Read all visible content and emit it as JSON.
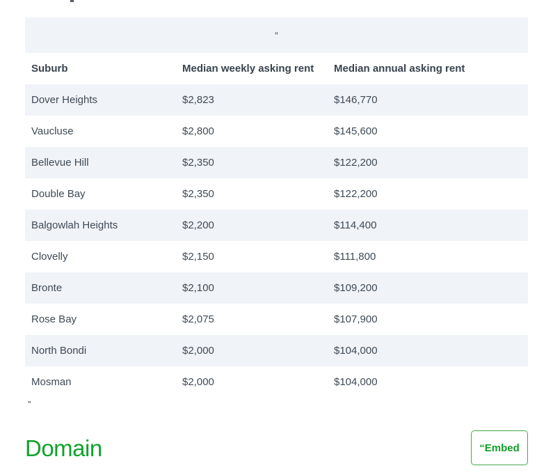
{
  "quote_block": {
    "opening_mark": "”"
  },
  "table": {
    "headers": [
      "Suburb",
      "Median weekly asking rent",
      "Median annual asking rent"
    ],
    "rows": [
      {
        "suburb": "Dover Heights",
        "weekly": "$2,823",
        "annual": "$146,770"
      },
      {
        "suburb": "Vaucluse",
        "weekly": "$2,800",
        "annual": "$145,600"
      },
      {
        "suburb": "Bellevue Hill",
        "weekly": "$2,350",
        "annual": "$122,200"
      },
      {
        "suburb": "Double Bay",
        "weekly": "$2,350",
        "annual": "$122,200"
      },
      {
        "suburb": "Balgowlah Heights",
        "weekly": "$2,200",
        "annual": "$114,400"
      },
      {
        "suburb": "Clovelly",
        "weekly": "$2,150",
        "annual": "$111,800"
      },
      {
        "suburb": "Bronte",
        "weekly": "$2,100",
        "annual": "$109,200"
      },
      {
        "suburb": "Rose Bay",
        "weekly": "$2,075",
        "annual": "$107,900"
      },
      {
        "suburb": "North Bondi",
        "weekly": "$2,000",
        "annual": "$104,000"
      },
      {
        "suburb": "Mosman",
        "weekly": "$2,000",
        "annual": "$104,000"
      }
    ]
  },
  "closing_quote_mark": "”",
  "footer": {
    "logo_text": "Domain",
    "embed_button_label": "“Embed"
  },
  "colors": {
    "row_alt_background": "#f0f3f7",
    "body_text": "#3f4a56",
    "header_text": "#39434f",
    "brand_green": "#10a22c",
    "button_text_green": "#0f9e26",
    "button_border_green": "#44a94e"
  }
}
